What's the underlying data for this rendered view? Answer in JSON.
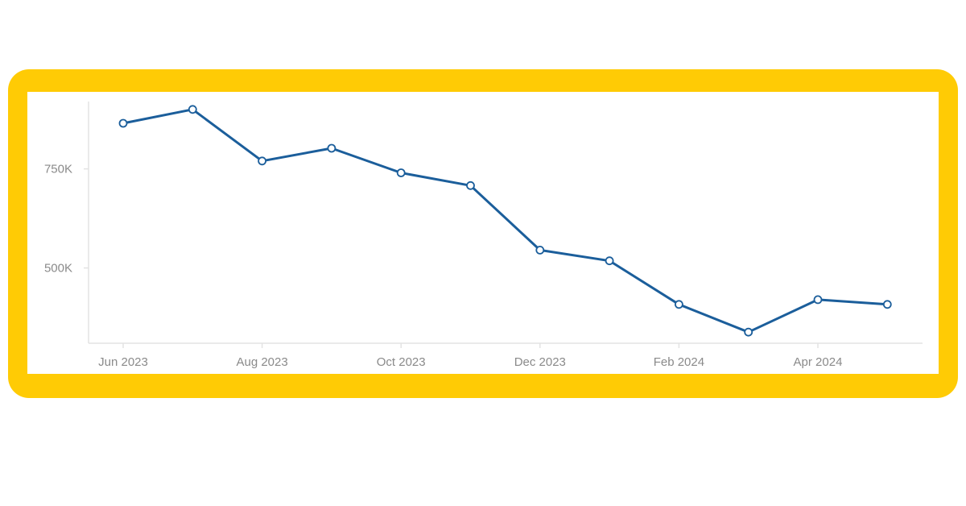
{
  "colors": {
    "frame": "#ffcb05",
    "line": "#1b5e9b",
    "marker_fill": "#ffffff",
    "axis": "#e3e3e3",
    "tick_text": "#8a8a8a"
  },
  "chart_data": {
    "type": "line",
    "title": "",
    "xlabel": "",
    "ylabel": "",
    "x": [
      "2023-06",
      "2023-07",
      "2023-08",
      "2023-09",
      "2023-10",
      "2023-11",
      "2023-12",
      "2024-01",
      "2024-02",
      "2024-03",
      "2024-04",
      "2024-05"
    ],
    "x_tick_labels": [
      "Jun 2023",
      "Aug 2023",
      "Oct 2023",
      "Dec 2023",
      "Feb 2024",
      "Apr 2024"
    ],
    "y_ticks": [
      500000,
      750000
    ],
    "y_tick_labels": [
      "500K",
      "750K"
    ],
    "ylim": [
      310000,
      920000
    ],
    "grid": false,
    "legend": "none",
    "series": [
      {
        "values": [
          865000,
          900000,
          770000,
          802000,
          740000,
          708000,
          545000,
          518000,
          408000,
          338000,
          420000,
          408000
        ]
      }
    ]
  }
}
